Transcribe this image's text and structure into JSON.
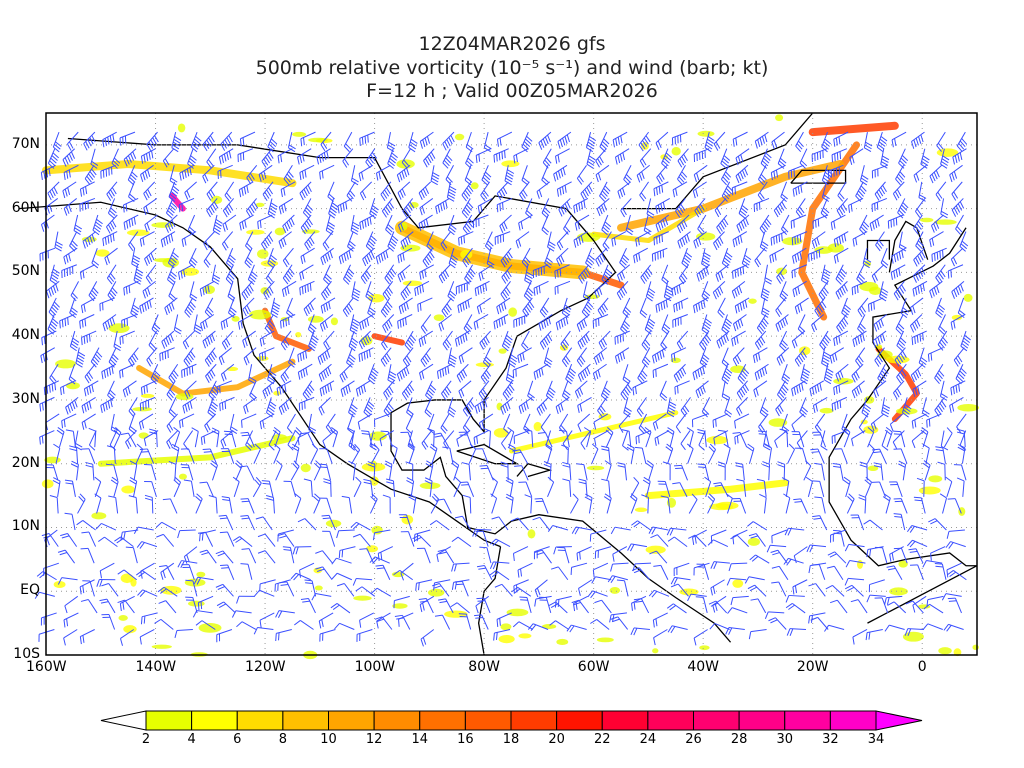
{
  "title": {
    "line1": "12Z04MAR2026 gfs",
    "line2": "500mb relative vorticity (10⁻⁵ s⁻¹) and wind (barb; kt)",
    "line3": "F=12 h ; Valid 00Z05MAR2026"
  },
  "map": {
    "lon_range": [
      -160,
      10
    ],
    "lat_range": [
      -10,
      75
    ],
    "lon_ticks": [
      {
        "v": -160,
        "label": "160W"
      },
      {
        "v": -140,
        "label": "140W"
      },
      {
        "v": -120,
        "label": "120W"
      },
      {
        "v": -100,
        "label": "100W"
      },
      {
        "v": -80,
        "label": "80W"
      },
      {
        "v": -60,
        "label": "60W"
      },
      {
        "v": -40,
        "label": "40W"
      },
      {
        "v": -20,
        "label": "20W"
      },
      {
        "v": 0,
        "label": "0"
      }
    ],
    "lat_ticks": [
      {
        "v": 70,
        "label": "70N"
      },
      {
        "v": 60,
        "label": "60N"
      },
      {
        "v": 50,
        "label": "50N"
      },
      {
        "v": 40,
        "label": "40N"
      },
      {
        "v": 30,
        "label": "30N"
      },
      {
        "v": 20,
        "label": "20N"
      },
      {
        "v": 10,
        "label": "10N"
      },
      {
        "v": 0,
        "label": "EQ"
      },
      {
        "v": -10,
        "label": "10S"
      }
    ],
    "barb_color": "#3a4fff",
    "grid_color": "#999999"
  },
  "colorbar": {
    "labels": [
      "2",
      "4",
      "6",
      "8",
      "10",
      "12",
      "14",
      "16",
      "18",
      "20",
      "22",
      "24",
      "26",
      "28",
      "30",
      "32",
      "34"
    ],
    "colors": [
      "#e6ff00",
      "#ffff00",
      "#ffdc00",
      "#ffc000",
      "#ffa500",
      "#ff8c00",
      "#ff7000",
      "#ff5a00",
      "#ff3c00",
      "#ff1400",
      "#ff0032",
      "#ff005a",
      "#ff0070",
      "#ff0088",
      "#ff00a0",
      "#ff00c8"
    ],
    "under_color": "#ffffff",
    "over_color": "#ff00ff"
  }
}
